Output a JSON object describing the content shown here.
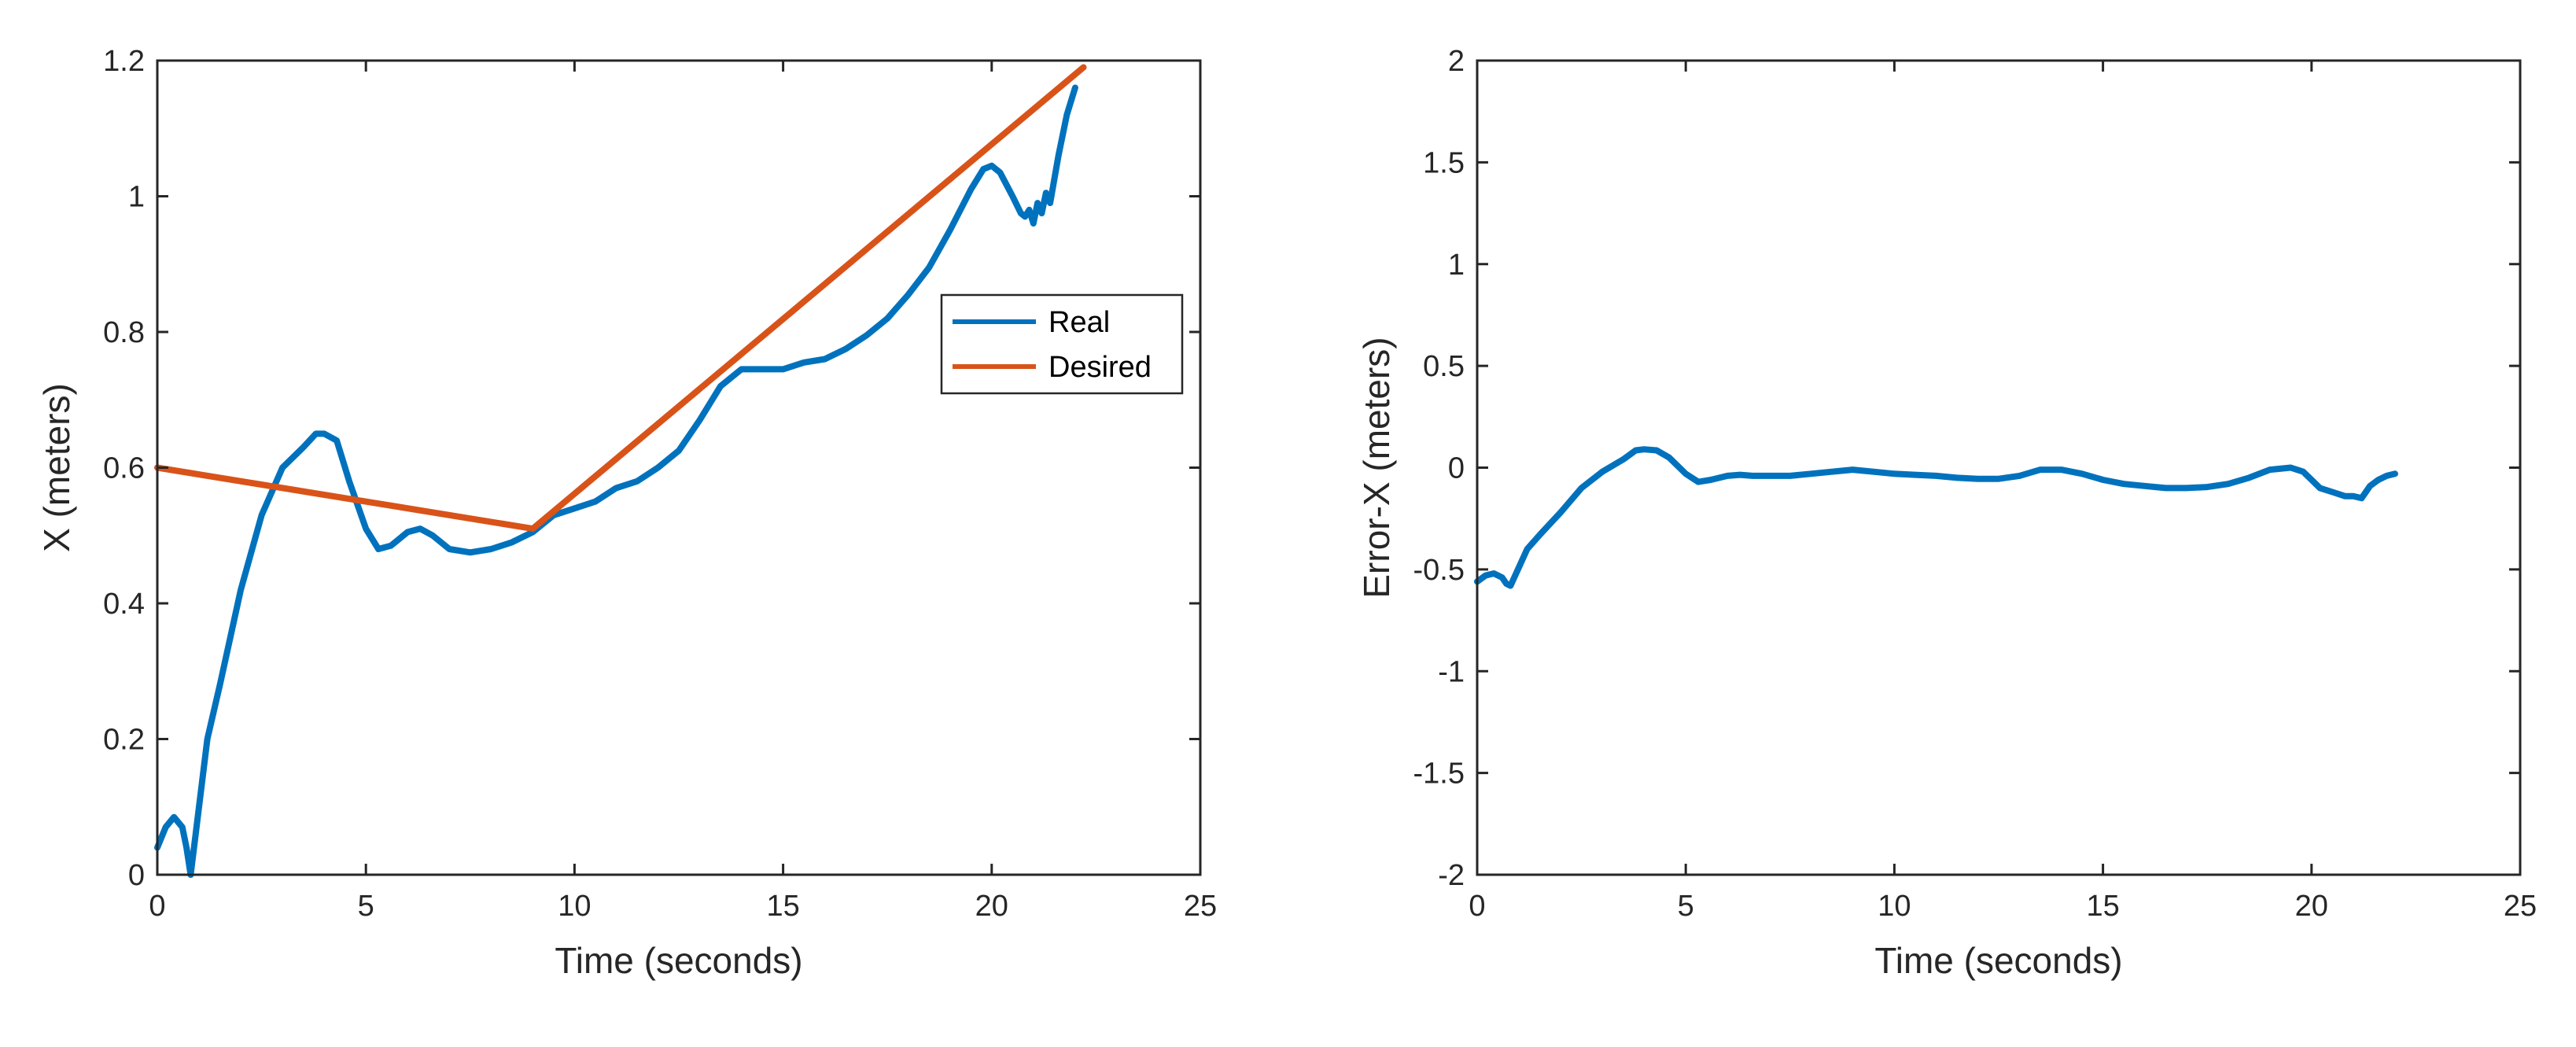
{
  "chart_data": [
    {
      "type": "line",
      "title": "",
      "xlabel": "Time (seconds)",
      "ylabel": "X (meters)",
      "xlim": [
        0,
        25
      ],
      "ylim": [
        0,
        1.2
      ],
      "xticks": [
        "0",
        "5",
        "10",
        "15",
        "20",
        "25"
      ],
      "yticks": [
        "0",
        "0.2",
        "0.4",
        "0.6",
        "0.8",
        "1",
        "1.2"
      ],
      "grid": false,
      "legend": {
        "location": "top-right",
        "entries": [
          "Real",
          "Desired"
        ]
      },
      "series": [
        {
          "name": "Real",
          "color": "#0072BD",
          "x": [
            0,
            0.2,
            0.4,
            0.6,
            0.7,
            0.8,
            1.0,
            1.2,
            1.5,
            2.0,
            2.5,
            3.0,
            3.5,
            3.8,
            4.0,
            4.3,
            4.6,
            5.0,
            5.3,
            5.6,
            6.0,
            6.3,
            6.6,
            7.0,
            7.5,
            8.0,
            8.5,
            9.0,
            9.5,
            10.0,
            10.5,
            11.0,
            11.5,
            12.0,
            12.5,
            13.0,
            13.5,
            14.0,
            14.5,
            15.0,
            15.5,
            16.0,
            16.5,
            17.0,
            17.5,
            18.0,
            18.5,
            19.0,
            19.5,
            19.8,
            20.0,
            20.2,
            20.5,
            20.7,
            20.8,
            20.9,
            21.0,
            21.1,
            21.2,
            21.3,
            21.4,
            21.6,
            21.8,
            22.0
          ],
          "values": [
            0.04,
            0.07,
            0.085,
            0.07,
            0.04,
            0.0,
            0.1,
            0.2,
            0.28,
            0.42,
            0.53,
            0.6,
            0.63,
            0.65,
            0.65,
            0.64,
            0.58,
            0.51,
            0.48,
            0.485,
            0.505,
            0.51,
            0.5,
            0.48,
            0.475,
            0.48,
            0.49,
            0.505,
            0.53,
            0.54,
            0.55,
            0.57,
            0.58,
            0.6,
            0.625,
            0.67,
            0.72,
            0.745,
            0.745,
            0.745,
            0.755,
            0.76,
            0.775,
            0.795,
            0.82,
            0.855,
            0.895,
            0.95,
            1.01,
            1.04,
            1.045,
            1.035,
            1.0,
            0.975,
            0.97,
            0.98,
            0.96,
            0.99,
            0.975,
            1.005,
            0.99,
            1.06,
            1.12,
            1.16
          ]
        },
        {
          "name": "Desired",
          "color": "#D95319",
          "x": [
            0,
            9.0,
            22.2
          ],
          "values": [
            0.6,
            0.51,
            1.19
          ]
        }
      ]
    },
    {
      "type": "line",
      "title": "",
      "xlabel": "Time (seconds)",
      "ylabel": "Error-X (meters)",
      "xlim": [
        0,
        25
      ],
      "ylim": [
        -2,
        2
      ],
      "xticks": [
        "0",
        "5",
        "10",
        "15",
        "20",
        "25"
      ],
      "yticks": [
        "-2",
        "-1.5",
        "-1",
        "-0.5",
        "0",
        "0.5",
        "1",
        "1.5",
        "2"
      ],
      "grid": false,
      "series": [
        {
          "name": "Error-X",
          "color": "#0072BD",
          "x": [
            0,
            0.2,
            0.4,
            0.6,
            0.7,
            0.8,
            1.0,
            1.2,
            1.5,
            2.0,
            2.5,
            3.0,
            3.5,
            3.8,
            4.0,
            4.3,
            4.6,
            5.0,
            5.3,
            5.6,
            6.0,
            6.3,
            6.6,
            7.0,
            7.5,
            8.0,
            8.5,
            9.0,
            9.5,
            10.0,
            10.5,
            11.0,
            11.5,
            12.0,
            12.5,
            13.0,
            13.5,
            14.0,
            14.5,
            15.0,
            15.5,
            16.0,
            16.5,
            17.0,
            17.5,
            18.0,
            18.5,
            19.0,
            19.5,
            19.8,
            20.0,
            20.2,
            20.5,
            20.8,
            21.0,
            21.2,
            21.4,
            21.6,
            21.8,
            22.0
          ],
          "values": [
            -0.56,
            -0.53,
            -0.52,
            -0.54,
            -0.57,
            -0.58,
            -0.49,
            -0.4,
            -0.33,
            -0.22,
            -0.1,
            -0.02,
            0.04,
            0.085,
            0.09,
            0.085,
            0.05,
            -0.03,
            -0.07,
            -0.06,
            -0.04,
            -0.035,
            -0.04,
            -0.04,
            -0.04,
            -0.03,
            -0.02,
            -0.01,
            -0.02,
            -0.03,
            -0.035,
            -0.04,
            -0.05,
            -0.055,
            -0.055,
            -0.04,
            -0.01,
            -0.01,
            -0.03,
            -0.06,
            -0.08,
            -0.09,
            -0.1,
            -0.1,
            -0.095,
            -0.08,
            -0.05,
            -0.01,
            0.0,
            -0.02,
            -0.06,
            -0.1,
            -0.12,
            -0.14,
            -0.14,
            -0.15,
            -0.09,
            -0.06,
            -0.04,
            -0.03
          ]
        }
      ]
    }
  ]
}
